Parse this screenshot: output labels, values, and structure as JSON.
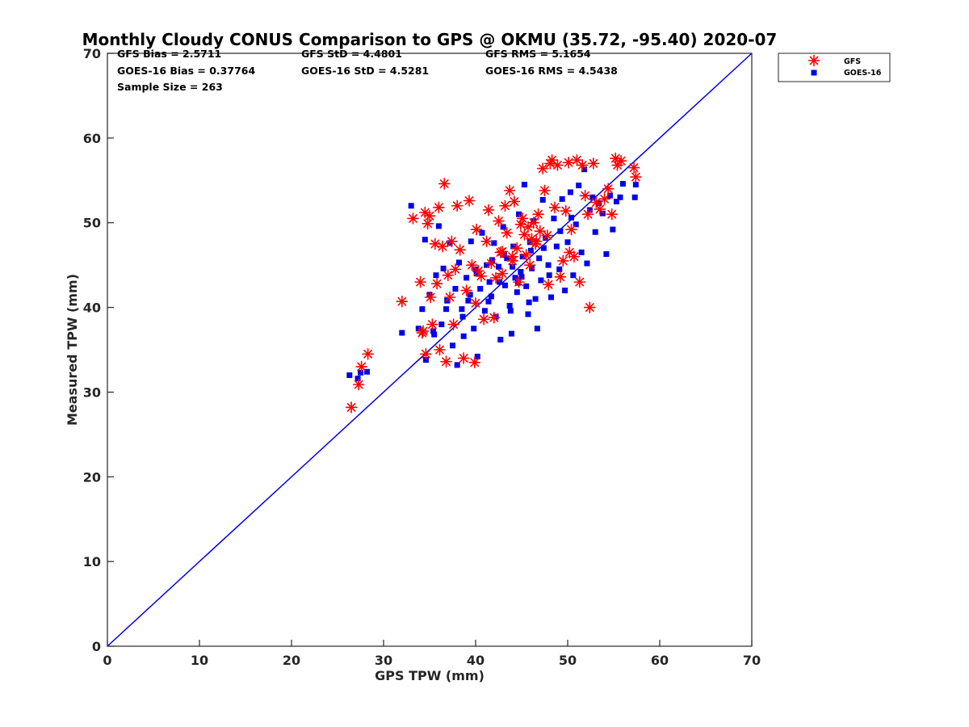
{
  "chart_data": {
    "type": "scatter",
    "title": "Monthly Cloudy CONUS Comparison to GPS @ OKMU (35.72, -95.40) 2020-07",
    "xlabel": "GPS TPW (mm)",
    "ylabel": "Measured TPW (mm)",
    "xlim": [
      0,
      70
    ],
    "ylim": [
      0,
      70
    ],
    "xticks": [
      "0",
      "10",
      "20",
      "30",
      "40",
      "50",
      "60",
      "70"
    ],
    "yticks": [
      "0",
      "10",
      "20",
      "30",
      "40",
      "50",
      "60",
      "70"
    ],
    "grid": false,
    "legend_position": "outside-top-right",
    "reference_line": {
      "x": [
        0,
        70
      ],
      "y": [
        0,
        70
      ],
      "color": "#0000ee"
    },
    "stats": {
      "gfs_bias": "GFS Bias = 2.5711",
      "goes_bias": "GOES-16 Bias = 0.37764",
      "sample_size": "Sample Size = 263",
      "gfs_std": "GFS StD = 4.4801",
      "goes_std": "GOES-16 StD = 4.5281",
      "gfs_rms": "GFS RMS = 5.1654",
      "goes_rms": "GOES-16 RMS = 4.5438"
    },
    "series": [
      {
        "name": "GFS",
        "marker": "asterisk",
        "color": "#ff0000",
        "points": [
          [
            26.5,
            28.2
          ],
          [
            27.3,
            30.9
          ],
          [
            27.6,
            33.0
          ],
          [
            28.3,
            34.5
          ],
          [
            32.0,
            40.7
          ],
          [
            33.2,
            50.5
          ],
          [
            34.0,
            43.0
          ],
          [
            34.3,
            37.2
          ],
          [
            34.5,
            51.2
          ],
          [
            34.6,
            34.5
          ],
          [
            34.8,
            49.9
          ],
          [
            35.0,
            50.8
          ],
          [
            35.1,
            41.2
          ],
          [
            35.6,
            47.5
          ],
          [
            35.8,
            42.8
          ],
          [
            36.0,
            51.8
          ],
          [
            36.1,
            35.0
          ],
          [
            36.4,
            47.2
          ],
          [
            36.6,
            54.6
          ],
          [
            36.8,
            33.6
          ],
          [
            37.0,
            43.8
          ],
          [
            37.2,
            41.2
          ],
          [
            37.4,
            47.8
          ],
          [
            37.6,
            38.0
          ],
          [
            38.0,
            52.0
          ],
          [
            38.3,
            46.8
          ],
          [
            38.7,
            34.0
          ],
          [
            39.0,
            42.0
          ],
          [
            39.3,
            52.6
          ],
          [
            39.6,
            45.0
          ],
          [
            39.9,
            33.5
          ],
          [
            40.1,
            49.2
          ],
          [
            40.3,
            44.3
          ],
          [
            40.6,
            43.7
          ],
          [
            40.9,
            38.6
          ],
          [
            41.2,
            47.8
          ],
          [
            41.4,
            51.5
          ],
          [
            41.7,
            45.2
          ],
          [
            42.0,
            38.8
          ],
          [
            42.2,
            43.5
          ],
          [
            42.5,
            50.2
          ],
          [
            42.7,
            46.5
          ],
          [
            42.9,
            44.0
          ],
          [
            43.2,
            52.0
          ],
          [
            43.4,
            48.8
          ],
          [
            43.7,
            53.8
          ],
          [
            44.0,
            46.0
          ],
          [
            44.2,
            52.5
          ],
          [
            44.5,
            47.0
          ],
          [
            44.7,
            43.0
          ],
          [
            44.9,
            49.8
          ],
          [
            45.1,
            50.5
          ],
          [
            45.3,
            48.6
          ],
          [
            45.5,
            46.2
          ],
          [
            45.7,
            49.5
          ],
          [
            45.9,
            45.0
          ],
          [
            46.1,
            48.1
          ],
          [
            46.3,
            50.0
          ],
          [
            46.6,
            47.8
          ],
          [
            46.8,
            51.0
          ],
          [
            47.0,
            49.0
          ],
          [
            47.3,
            56.4
          ],
          [
            47.5,
            53.8
          ],
          [
            47.8,
            48.5
          ],
          [
            48.1,
            57.0
          ],
          [
            48.3,
            57.4
          ],
          [
            48.6,
            51.8
          ],
          [
            48.9,
            56.8
          ],
          [
            49.2,
            43.6
          ],
          [
            49.5,
            45.5
          ],
          [
            49.8,
            51.4
          ],
          [
            50.1,
            57.1
          ],
          [
            50.4,
            49.2
          ],
          [
            50.7,
            46.0
          ],
          [
            51.0,
            57.4
          ],
          [
            51.3,
            43.0
          ],
          [
            51.6,
            56.8
          ],
          [
            51.9,
            53.2
          ],
          [
            52.2,
            51.0
          ],
          [
            52.4,
            40.0
          ],
          [
            52.8,
            57.0
          ],
          [
            53.1,
            52.4
          ],
          [
            53.5,
            51.6
          ],
          [
            54.0,
            52.8
          ],
          [
            54.4,
            54.0
          ],
          [
            54.8,
            51.0
          ],
          [
            55.2,
            57.6
          ],
          [
            55.4,
            56.8
          ],
          [
            55.8,
            57.3
          ],
          [
            57.2,
            56.5
          ],
          [
            57.4,
            55.4
          ],
          [
            34.2,
            37.0
          ],
          [
            35.3,
            38.0
          ],
          [
            37.8,
            44.5
          ],
          [
            40.0,
            40.5
          ],
          [
            42.9,
            46.6
          ],
          [
            44.0,
            45.5
          ],
          [
            46.5,
            47.5
          ],
          [
            47.9,
            42.7
          ],
          [
            50.2,
            46.5
          ]
        ]
      },
      {
        "name": "GOES-16",
        "marker": "square",
        "color": "#0000ee",
        "points": [
          [
            26.3,
            32.0
          ],
          [
            27.2,
            31.6
          ],
          [
            27.5,
            32.3
          ],
          [
            28.2,
            32.4
          ],
          [
            32.0,
            37.0
          ],
          [
            33.0,
            52.0
          ],
          [
            33.8,
            37.5
          ],
          [
            34.2,
            39.8
          ],
          [
            34.5,
            48.0
          ],
          [
            34.6,
            33.8
          ],
          [
            35.0,
            41.5
          ],
          [
            35.4,
            37.2
          ],
          [
            35.7,
            43.8
          ],
          [
            36.0,
            49.6
          ],
          [
            36.3,
            38.0
          ],
          [
            36.5,
            44.6
          ],
          [
            36.8,
            39.8
          ],
          [
            37.2,
            47.6
          ],
          [
            37.5,
            35.5
          ],
          [
            37.8,
            42.2
          ],
          [
            38.0,
            33.2
          ],
          [
            38.2,
            45.3
          ],
          [
            38.5,
            39.8
          ],
          [
            38.7,
            36.6
          ],
          [
            39.0,
            43.5
          ],
          [
            39.2,
            40.8
          ],
          [
            39.5,
            47.8
          ],
          [
            39.8,
            37.5
          ],
          [
            40.0,
            44.5
          ],
          [
            40.2,
            34.2
          ],
          [
            40.5,
            42.2
          ],
          [
            40.7,
            48.8
          ],
          [
            41.0,
            39.6
          ],
          [
            41.2,
            45.0
          ],
          [
            41.5,
            43.0
          ],
          [
            41.7,
            41.3
          ],
          [
            42.0,
            47.6
          ],
          [
            42.2,
            38.9
          ],
          [
            42.5,
            44.8
          ],
          [
            42.7,
            36.2
          ],
          [
            43.0,
            49.5
          ],
          [
            43.2,
            42.6
          ],
          [
            43.4,
            45.8
          ],
          [
            43.7,
            40.2
          ],
          [
            43.9,
            36.9
          ],
          [
            44.1,
            47.2
          ],
          [
            44.3,
            43.5
          ],
          [
            44.5,
            41.8
          ],
          [
            44.7,
            51.0
          ],
          [
            44.9,
            44.2
          ],
          [
            45.1,
            46.0
          ],
          [
            45.3,
            54.5
          ],
          [
            45.5,
            42.5
          ],
          [
            45.7,
            39.2
          ],
          [
            45.9,
            47.7
          ],
          [
            46.1,
            44.6
          ],
          [
            46.3,
            50.2
          ],
          [
            46.5,
            41.0
          ],
          [
            46.7,
            37.5
          ],
          [
            46.9,
            45.8
          ],
          [
            47.1,
            43.2
          ],
          [
            47.3,
            52.7
          ],
          [
            47.6,
            48.2
          ],
          [
            47.9,
            45.0
          ],
          [
            48.2,
            41.2
          ],
          [
            48.5,
            50.5
          ],
          [
            48.8,
            47.2
          ],
          [
            49.1,
            44.5
          ],
          [
            49.4,
            52.8
          ],
          [
            49.7,
            42.0
          ],
          [
            50.0,
            47.7
          ],
          [
            50.3,
            53.6
          ],
          [
            50.6,
            43.8
          ],
          [
            50.9,
            49.8
          ],
          [
            51.2,
            54.4
          ],
          [
            51.5,
            46.5
          ],
          [
            51.8,
            56.3
          ],
          [
            52.1,
            45.2
          ],
          [
            52.4,
            51.5
          ],
          [
            52.7,
            53.0
          ],
          [
            53.0,
            48.9
          ],
          [
            53.4,
            52.3
          ],
          [
            53.8,
            51.1
          ],
          [
            54.2,
            46.3
          ],
          [
            54.6,
            53.2
          ],
          [
            54.9,
            49.2
          ],
          [
            55.3,
            52.5
          ],
          [
            55.7,
            53.0
          ],
          [
            56.0,
            54.6
          ],
          [
            57.3,
            53.0
          ],
          [
            57.4,
            54.5
          ],
          [
            40.1,
            44.0
          ],
          [
            42.6,
            43.0
          ],
          [
            44.0,
            44.8
          ],
          [
            45.0,
            43.6
          ],
          [
            43.1,
            46.2
          ],
          [
            46.0,
            46.7
          ],
          [
            41.8,
            45.6
          ],
          [
            44.6,
            42.9
          ],
          [
            47.4,
            47.0
          ],
          [
            36.9,
            40.8
          ],
          [
            39.4,
            41.5
          ],
          [
            48.0,
            43.8
          ],
          [
            49.2,
            49.0
          ],
          [
            50.4,
            50.6
          ],
          [
            35.5,
            36.8
          ],
          [
            38.6,
            38.9
          ],
          [
            41.4,
            40.7
          ],
          [
            43.8,
            39.6
          ],
          [
            45.8,
            40.6
          ]
        ]
      }
    ]
  }
}
